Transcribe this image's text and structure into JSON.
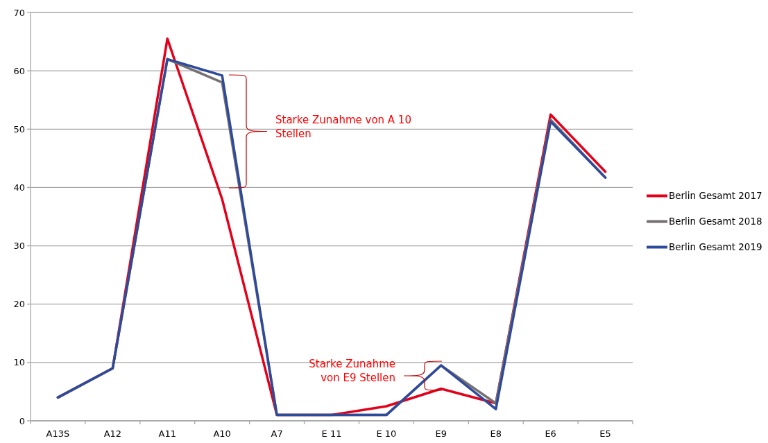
{
  "chart_data": {
    "type": "line",
    "categories": [
      "A13S",
      "A12",
      "A11",
      "A10",
      "A7",
      "E 11",
      "E 10",
      "E9",
      "E8",
      "E6",
      "E5"
    ],
    "series": [
      {
        "name": "Berlin Gesamt 2017",
        "color": "#e2001a",
        "values": [
          4,
          9,
          65.5,
          38,
          1,
          1,
          2.5,
          5.5,
          3,
          52.5,
          42.7
        ]
      },
      {
        "name": "Berlin Gesamt 2018",
        "color": "#767171",
        "values": [
          4,
          9,
          62,
          58,
          1,
          1,
          1,
          9.5,
          3,
          51.6,
          41.7
        ]
      },
      {
        "name": "Berlin Gesamt 2019",
        "color": "#2e4a9b",
        "values": [
          4,
          9,
          62,
          59.2,
          1,
          1,
          1,
          9.5,
          2,
          51.3,
          41.7
        ]
      }
    ],
    "ylim": [
      0,
      70
    ],
    "yticks": [
      0,
      10,
      20,
      30,
      40,
      50,
      60,
      70
    ],
    "grid": "y",
    "legend": "right",
    "marker": "none",
    "line_style": "solid",
    "annotations": [
      "Starke Zunahme von A 10\nStellen",
      "Starke Zunahme\nvon E9 Stellen"
    ]
  }
}
